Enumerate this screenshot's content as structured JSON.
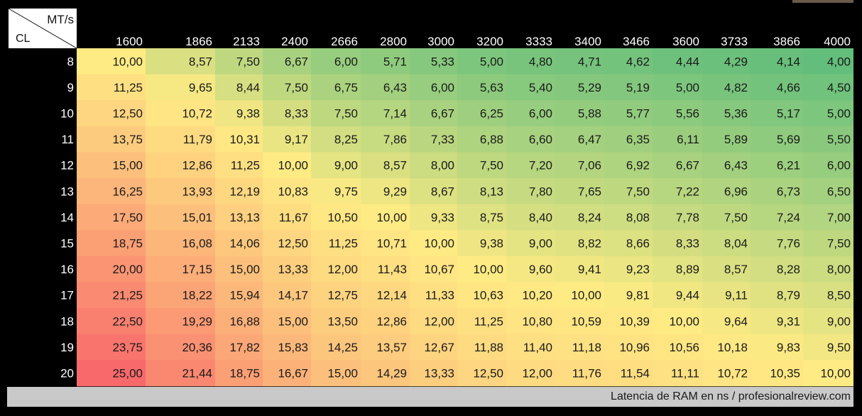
{
  "corner": {
    "column_label": "MT/s",
    "row_label": "CL"
  },
  "footer": {
    "text": "Latencia de RAM en ns / profesionalreview.com"
  },
  "chart_data": {
    "type": "heatmap",
    "x_label": "MT/s",
    "y_label": "CL",
    "columns": [
      "1600",
      "1866",
      "2133",
      "2400",
      "2666",
      "2800",
      "3000",
      "3200",
      "3333",
      "3400",
      "3466",
      "3600",
      "3733",
      "3866",
      "4000"
    ],
    "rows": [
      "8",
      "9",
      "10",
      "11",
      "12",
      "13",
      "14",
      "15",
      "16",
      "17",
      "18",
      "19",
      "20"
    ],
    "values": [
      [
        "10,00",
        "8,57",
        "7,50",
        "6,67",
        "6,00",
        "5,71",
        "5,33",
        "5,00",
        "4,80",
        "4,71",
        "4,62",
        "4,44",
        "4,29",
        "4,14",
        "4,00"
      ],
      [
        "11,25",
        "9,65",
        "8,44",
        "7,50",
        "6,75",
        "6,43",
        "6,00",
        "5,63",
        "5,40",
        "5,29",
        "5,19",
        "5,00",
        "4,82",
        "4,66",
        "4,50"
      ],
      [
        "12,50",
        "10,72",
        "9,38",
        "8,33",
        "7,50",
        "7,14",
        "6,67",
        "6,25",
        "6,00",
        "5,88",
        "5,77",
        "5,56",
        "5,36",
        "5,17",
        "5,00"
      ],
      [
        "13,75",
        "11,79",
        "10,31",
        "9,17",
        "8,25",
        "7,86",
        "7,33",
        "6,88",
        "6,60",
        "6,47",
        "6,35",
        "6,11",
        "5,89",
        "5,69",
        "5,50"
      ],
      [
        "15,00",
        "12,86",
        "11,25",
        "10,00",
        "9,00",
        "8,57",
        "8,00",
        "7,50",
        "7,20",
        "7,06",
        "6,92",
        "6,67",
        "6,43",
        "6,21",
        "6,00"
      ],
      [
        "16,25",
        "13,93",
        "12,19",
        "10,83",
        "9,75",
        "9,29",
        "8,67",
        "8,13",
        "7,80",
        "7,65",
        "7,50",
        "7,22",
        "6,96",
        "6,73",
        "6,50"
      ],
      [
        "17,50",
        "15,01",
        "13,13",
        "11,67",
        "10,50",
        "10,00",
        "9,33",
        "8,75",
        "8,40",
        "8,24",
        "8,08",
        "7,78",
        "7,50",
        "7,24",
        "7,00"
      ],
      [
        "18,75",
        "16,08",
        "14,06",
        "12,50",
        "11,25",
        "10,71",
        "10,00",
        "9,38",
        "9,00",
        "8,82",
        "8,66",
        "8,33",
        "8,04",
        "7,76",
        "7,50"
      ],
      [
        "20,00",
        "17,15",
        "15,00",
        "13,33",
        "12,00",
        "11,43",
        "10,67",
        "10,00",
        "9,60",
        "9,41",
        "9,23",
        "8,89",
        "8,57",
        "8,28",
        "8,00"
      ],
      [
        "21,25",
        "18,22",
        "15,94",
        "14,17",
        "12,75",
        "12,14",
        "11,33",
        "10,63",
        "10,20",
        "10,00",
        "9,81",
        "9,44",
        "9,11",
        "8,79",
        "8,50"
      ],
      [
        "22,50",
        "19,29",
        "16,88",
        "15,00",
        "13,50",
        "12,86",
        "12,00",
        "11,25",
        "10,80",
        "10,59",
        "10,39",
        "10,00",
        "9,64",
        "9,31",
        "9,00"
      ],
      [
        "23,75",
        "20,36",
        "17,82",
        "15,83",
        "14,25",
        "13,57",
        "12,67",
        "11,88",
        "11,40",
        "11,18",
        "10,96",
        "10,56",
        "10,18",
        "9,83",
        "9,50"
      ],
      [
        "25,00",
        "21,44",
        "18,75",
        "16,67",
        "15,00",
        "14,29",
        "13,33",
        "12,50",
        "12,00",
        "11,76",
        "11,54",
        "11,11",
        "10,72",
        "10,35",
        "10,00"
      ]
    ],
    "color_scale": {
      "low": "#63be7b",
      "mid": "#ffeb84",
      "high": "#f8696b"
    },
    "header_background": "#000000",
    "header_text_color": "#ffffff"
  }
}
